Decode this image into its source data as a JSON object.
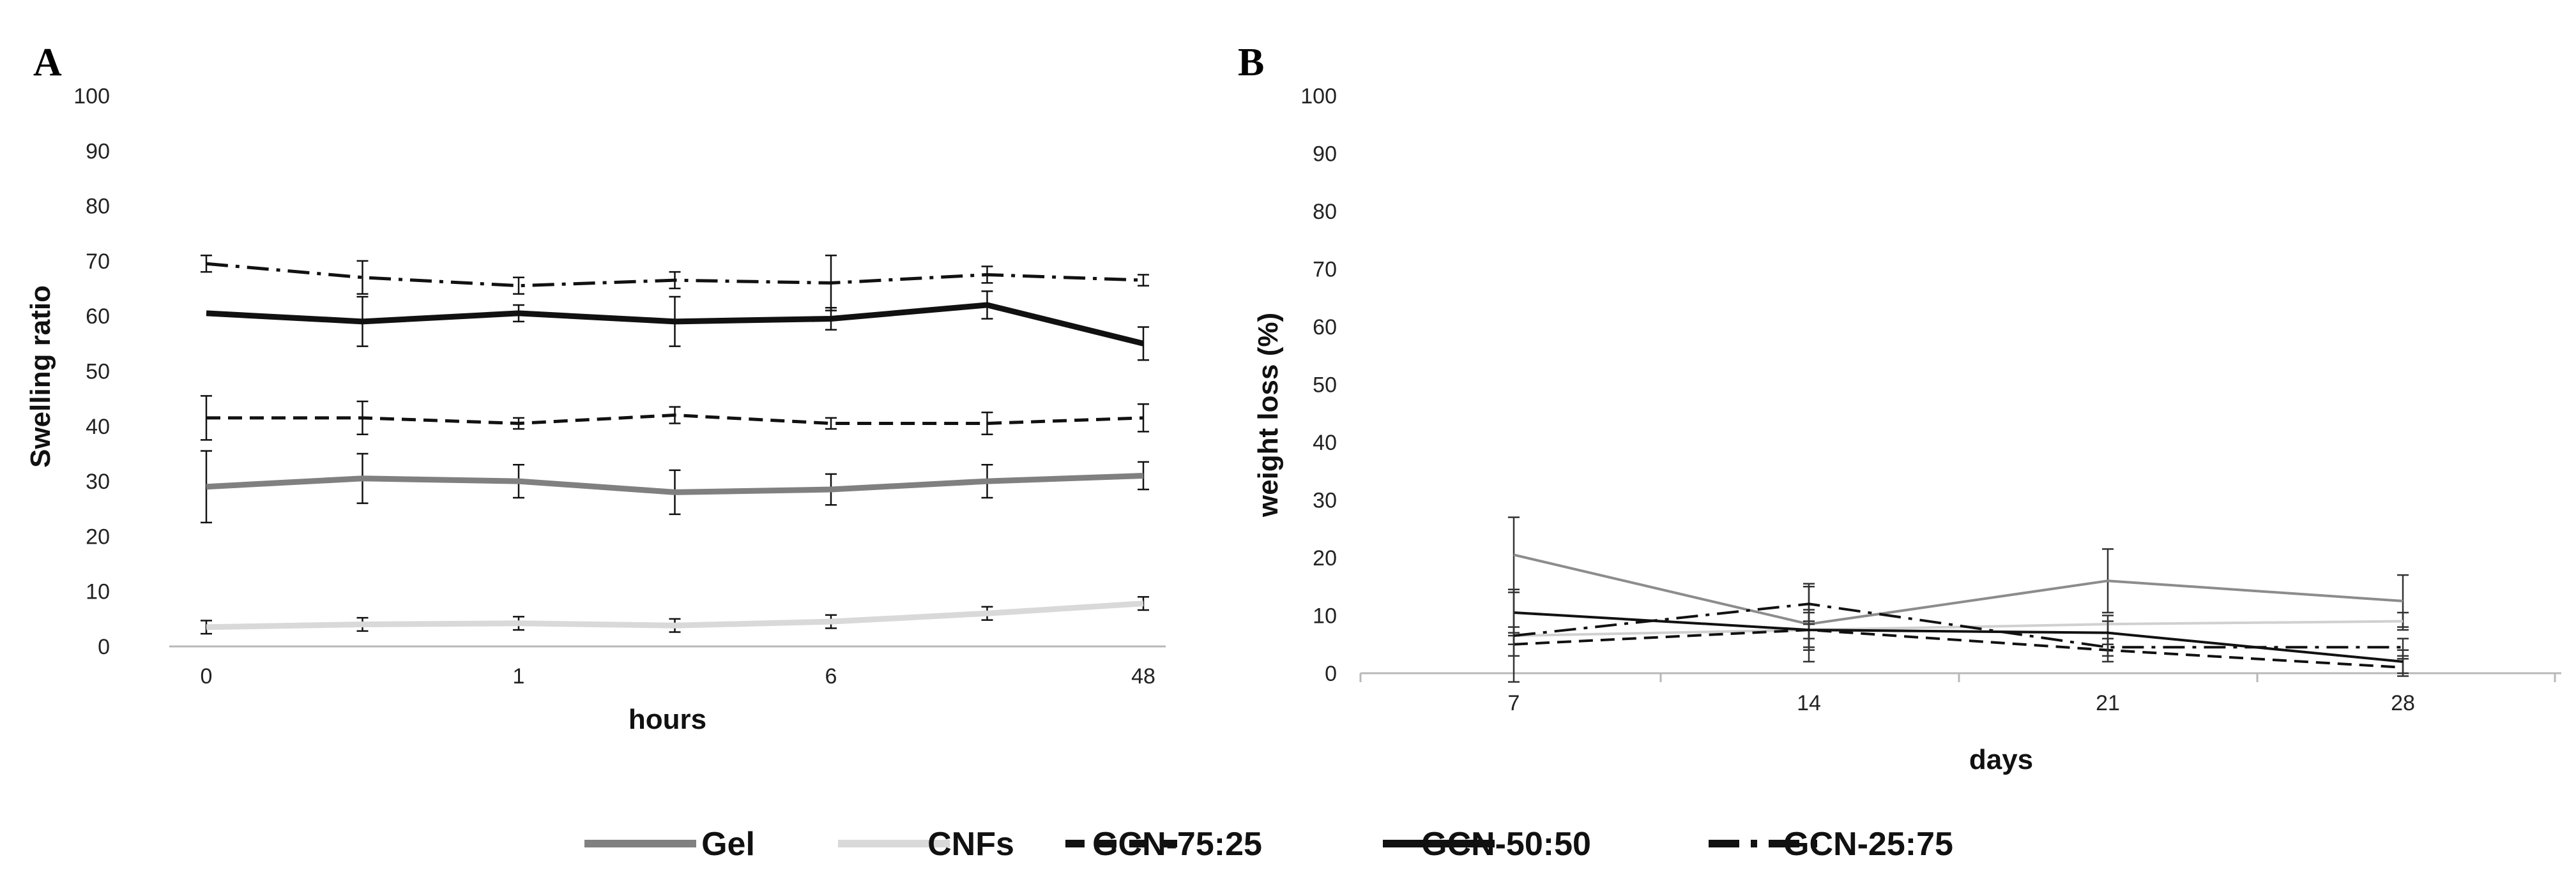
{
  "chart_data": [
    {
      "panel": "A",
      "type": "line",
      "xlabel": "hours",
      "ylabel": "Swelling ratio",
      "ylim": [
        0,
        100
      ],
      "yticks": [
        0,
        10,
        20,
        30,
        40,
        50,
        60,
        70,
        80,
        90,
        100
      ],
      "x_index": [
        0,
        1,
        2,
        3,
        4,
        5,
        6
      ],
      "xtick_labels": [
        {
          "index": 0,
          "label": "0"
        },
        {
          "index": 2,
          "label": "1"
        },
        {
          "index": 4,
          "label": "6"
        },
        {
          "index": 6,
          "label": "48"
        }
      ],
      "grid": false,
      "series": [
        {
          "name": "Gel",
          "color": "#808080",
          "dash": "solid",
          "width": "thick",
          "values": [
            29,
            30.5,
            30,
            28,
            28.5,
            30,
            31
          ],
          "errors": [
            6.5,
            4.5,
            3,
            4,
            2.8,
            3,
            2.5
          ]
        },
        {
          "name": "CNFs",
          "color": "#d9d9d9",
          "dash": "solid",
          "width": "thick",
          "values": [
            3.5,
            4,
            4.2,
            3.8,
            4.5,
            6,
            7.8
          ],
          "errors": [
            1.2,
            1.2,
            1.2,
            1.2,
            1.2,
            1.2,
            1.2
          ]
        },
        {
          "name": "GCN-75:25",
          "color": "#111111",
          "dash": "dashed",
          "width": "medium",
          "values": [
            41.5,
            41.5,
            40.5,
            42,
            40.5,
            40.5,
            41.5
          ],
          "errors": [
            4,
            3,
            1,
            1.5,
            1,
            2,
            2.5
          ]
        },
        {
          "name": "GCN-50:50",
          "color": "#111111",
          "dash": "solid",
          "width": "thick",
          "values": [
            60.5,
            59,
            60.5,
            59,
            59.5,
            62,
            55
          ],
          "errors": [
            0,
            4.5,
            1.5,
            4.5,
            2,
            2.5,
            3
          ]
        },
        {
          "name": "GCN-25:75",
          "color": "#111111",
          "dash": "dashdot",
          "width": "medium",
          "values": [
            69.5,
            67,
            65.5,
            66.5,
            66,
            67.5,
            66.5
          ],
          "errors": [
            1.5,
            3,
            1.5,
            1.5,
            5,
            1.5,
            1
          ]
        }
      ]
    },
    {
      "panel": "B",
      "type": "line",
      "xlabel": "days",
      "ylabel": "weight loss (%)",
      "ylim": [
        0,
        100
      ],
      "yticks": [
        0,
        10,
        20,
        30,
        40,
        50,
        60,
        70,
        80,
        90,
        100
      ],
      "categories": [
        "7",
        "14",
        "21",
        "28"
      ],
      "grid": false,
      "series": [
        {
          "name": "Gel",
          "color": "#8c8c8c",
          "dash": "solid",
          "width": "thin",
          "values": [
            20.5,
            8.5,
            16,
            12.5
          ],
          "errors": [
            6.5,
            6.5,
            5.5,
            4.5
          ]
        },
        {
          "name": "CNFs",
          "color": "#d0d0d0",
          "dash": "solid",
          "width": "thin",
          "values": [
            6.5,
            7.5,
            8.5,
            9
          ],
          "errors": [
            1.5,
            1.5,
            1.5,
            1.5
          ]
        },
        {
          "name": "GCN-75:25",
          "color": "#111111",
          "dash": "dashed",
          "width": "thin",
          "values": [
            5,
            7.5,
            4,
            1
          ],
          "errors": [
            2,
            3.5,
            2,
            1.5
          ]
        },
        {
          "name": "GCN-50:50",
          "color": "#111111",
          "dash": "solid",
          "width": "thin",
          "values": [
            10.5,
            7.5,
            7,
            2
          ],
          "errors": [
            4,
            3,
            2,
            2
          ]
        },
        {
          "name": "GCN-25:75",
          "color": "#111111",
          "dash": "dashdot",
          "width": "thin",
          "values": [
            6.5,
            12,
            4.5,
            4.5
          ],
          "errors": [
            8,
            3.5,
            1.5,
            1.5
          ]
        }
      ]
    }
  ],
  "legend": {
    "position": "bottom-center",
    "items": [
      {
        "label": "Gel",
        "color": "#808080",
        "dash": "solid"
      },
      {
        "label": "CNFs",
        "color": "#d9d9d9",
        "dash": "solid"
      },
      {
        "label": "GCN-75:25",
        "color": "#111111",
        "dash": "dashed"
      },
      {
        "label": "GCN-50:50",
        "color": "#111111",
        "dash": "solid"
      },
      {
        "label": "GCN-25:75",
        "color": "#111111",
        "dash": "dashdot"
      }
    ]
  }
}
